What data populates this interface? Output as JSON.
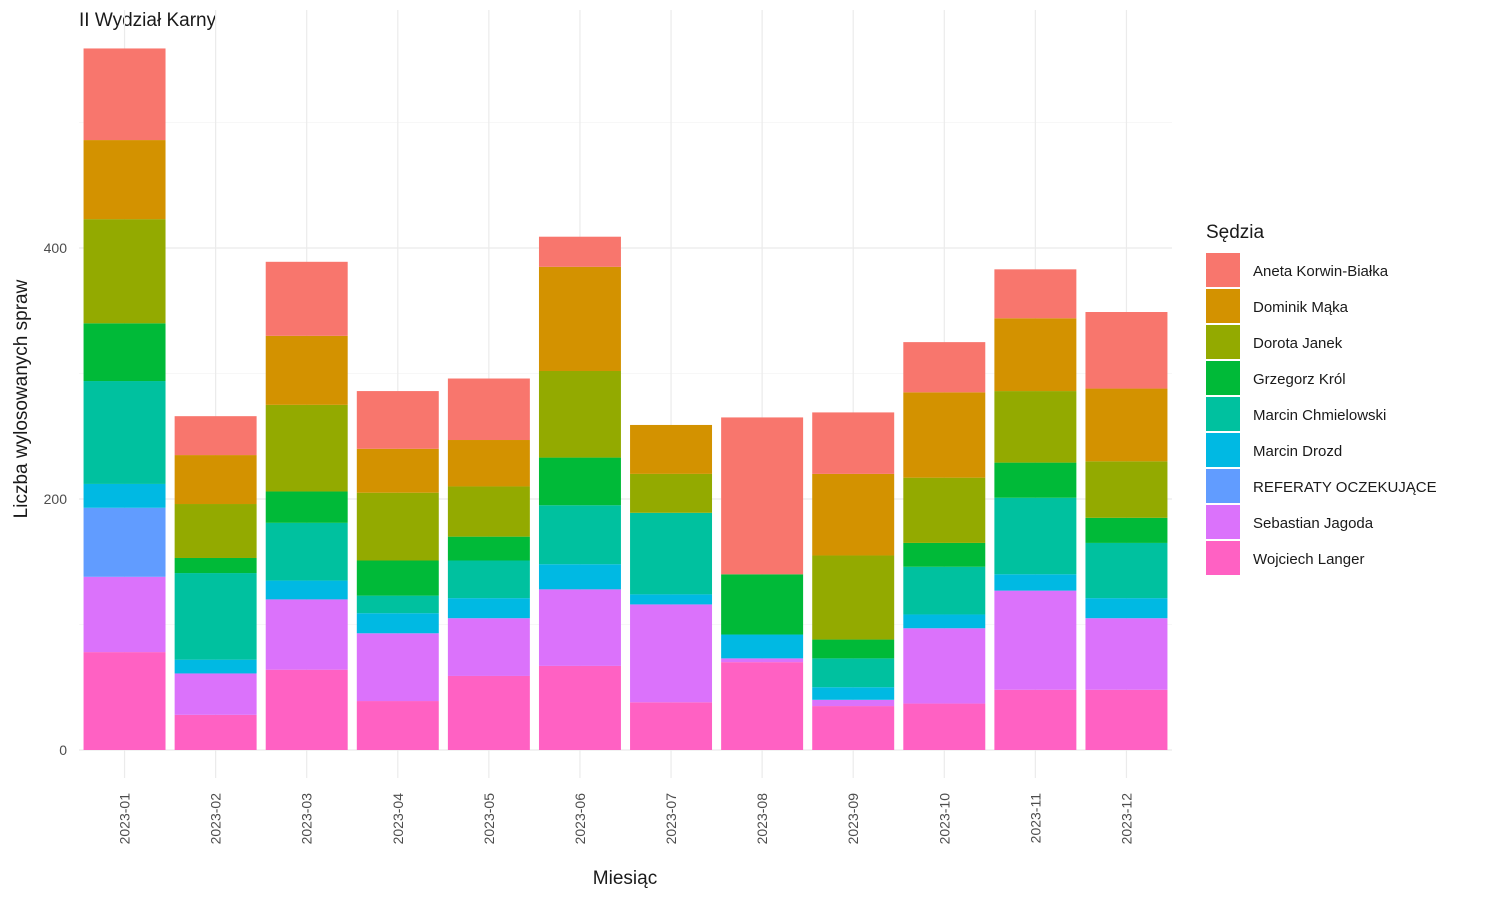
{
  "chart_data": {
    "type": "bar",
    "stacked": true,
    "title": "II Wydział Karny",
    "xlabel": "Miesiąc",
    "ylabel": "Liczba wylosowanych spraw",
    "ylim": [
      0,
      560
    ],
    "y_ticks": [
      0,
      200,
      400
    ],
    "grid": true,
    "legend_title": "Sędzia",
    "legend_position": "right",
    "categories": [
      "2023-01",
      "2023-02",
      "2023-03",
      "2023-04",
      "2023-05",
      "2023-06",
      "2023-07",
      "2023-08",
      "2023-09",
      "2023-10",
      "2023-11",
      "2023-12"
    ],
    "series": [
      {
        "name": "Wojciech Langer",
        "color": "#FF61C3",
        "values": [
          78,
          28,
          64,
          39,
          59,
          67,
          38,
          70,
          35,
          37,
          48,
          48
        ]
      },
      {
        "name": "Sebastian Jagoda",
        "color": "#DB72FB",
        "values": [
          60,
          33,
          56,
          54,
          46,
          61,
          78,
          3,
          5,
          60,
          79,
          57
        ]
      },
      {
        "name": "REFERATY OCZEKUJĄCE",
        "color": "#619CFF",
        "values": [
          55,
          0,
          0,
          0,
          0,
          0,
          0,
          0,
          0,
          0,
          0,
          0
        ]
      },
      {
        "name": "Marcin Drozd",
        "color": "#00B9E3",
        "values": [
          19,
          11,
          15,
          16,
          16,
          20,
          8,
          19,
          10,
          11,
          13,
          16
        ]
      },
      {
        "name": "Marcin Chmielowski",
        "color": "#00C19F",
        "values": [
          82,
          69,
          46,
          14,
          30,
          47,
          65,
          0,
          23,
          38,
          61,
          44
        ]
      },
      {
        "name": "Grzegorz Król",
        "color": "#00BA38",
        "values": [
          46,
          12,
          25,
          28,
          19,
          38,
          0,
          48,
          15,
          19,
          28,
          20
        ]
      },
      {
        "name": "Dorota Janek",
        "color": "#93AA00",
        "values": [
          83,
          43,
          69,
          54,
          40,
          69,
          31,
          0,
          67,
          52,
          57,
          45
        ]
      },
      {
        "name": "Dominik Mąka",
        "color": "#D39200",
        "values": [
          63,
          39,
          55,
          35,
          37,
          83,
          39,
          0,
          65,
          68,
          58,
          58
        ]
      },
      {
        "name": "Aneta Korwin-Białka",
        "color": "#F8766D",
        "values": [
          73,
          31,
          59,
          46,
          49,
          24,
          0,
          125,
          49,
          40,
          39,
          61
        ]
      }
    ]
  }
}
